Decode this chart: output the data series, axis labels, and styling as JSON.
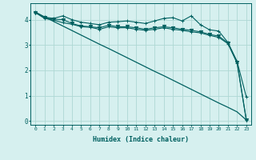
{
  "xlabel": "Humidex (Indice chaleur)",
  "bg_color": "#d6f0ef",
  "grid_color": "#aed8d4",
  "line_color": "#006060",
  "xlim": [
    -0.5,
    23.5
  ],
  "ylim": [
    -0.15,
    4.65
  ],
  "xticks": [
    0,
    1,
    2,
    3,
    4,
    5,
    6,
    7,
    8,
    9,
    10,
    11,
    12,
    13,
    14,
    15,
    16,
    17,
    18,
    19,
    20,
    21,
    22,
    23
  ],
  "yticks": [
    0,
    1,
    2,
    3,
    4
  ],
  "series": [
    {
      "y": [
        4.3,
        4.1,
        4.05,
        4.15,
        4.0,
        3.9,
        3.85,
        3.8,
        3.9,
        3.92,
        3.95,
        3.9,
        3.85,
        3.95,
        4.05,
        4.08,
        3.95,
        4.15,
        3.8,
        3.6,
        3.55,
        3.1,
        2.35,
        0.95
      ],
      "marker": "+",
      "markersize": 3.5,
      "lw": 0.8
    },
    {
      "y": [
        4.28,
        4.08,
        4.02,
        4.0,
        3.85,
        3.75,
        3.72,
        3.68,
        3.78,
        3.72,
        3.72,
        3.68,
        3.62,
        3.68,
        3.72,
        3.68,
        3.62,
        3.58,
        3.52,
        3.42,
        3.35,
        3.08,
        2.32,
        0.04
      ],
      "marker": "v",
      "markersize": 3.0,
      "lw": 0.8
    },
    {
      "y": [
        4.28,
        4.05,
        3.98,
        3.88,
        3.82,
        3.72,
        3.7,
        3.62,
        3.72,
        3.68,
        3.68,
        3.62,
        3.58,
        3.62,
        3.68,
        3.62,
        3.58,
        3.52,
        3.48,
        3.38,
        3.3,
        3.05,
        2.28,
        0.04
      ],
      "marker": "+",
      "markersize": 3.0,
      "lw": 0.8
    },
    {
      "y": [
        4.3,
        4.11,
        3.93,
        3.75,
        3.57,
        3.39,
        3.21,
        3.03,
        2.86,
        2.68,
        2.5,
        2.32,
        2.14,
        1.96,
        1.79,
        1.61,
        1.43,
        1.25,
        1.07,
        0.89,
        0.71,
        0.54,
        0.36,
        0.04
      ],
      "marker": null,
      "markersize": 0,
      "lw": 0.9
    }
  ]
}
